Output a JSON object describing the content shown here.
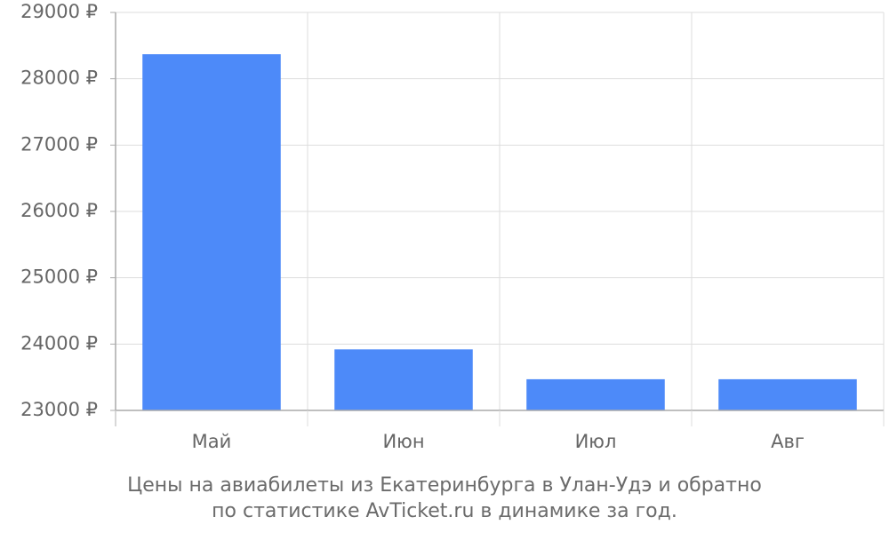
{
  "chart_data": {
    "type": "bar",
    "categories": [
      "Май",
      "Июн",
      "Июл",
      "Авг"
    ],
    "values": [
      28370,
      23920,
      23470,
      23470
    ],
    "y_tick_labels": [
      "23000 ₽",
      "24000 ₽",
      "25000 ₽",
      "26000 ₽",
      "27000 ₽",
      "28000 ₽",
      "29000 ₽"
    ],
    "y_ticks": [
      23000,
      24000,
      25000,
      26000,
      27000,
      28000,
      29000
    ],
    "ylim": [
      23000,
      29000
    ],
    "grid": true,
    "bar_color": "#4d8af9",
    "grid_color": "#dddddd",
    "axis_color": "#aaaaaa",
    "label_color": "#666666"
  },
  "caption": {
    "line1": "Цены на авиабилеты из Екатеринбурга в Улан-Удэ и обратно",
    "line2": "по статистике AvTicket.ru в динамике за год."
  }
}
